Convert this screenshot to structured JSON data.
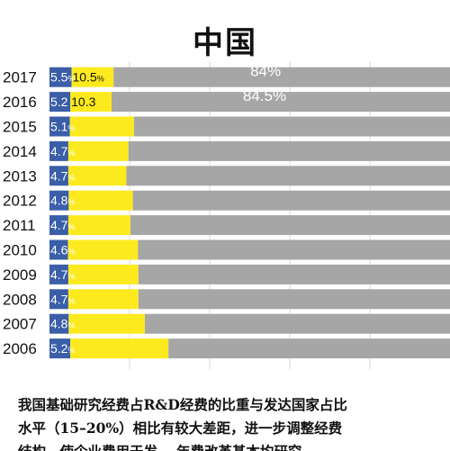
{
  "chart_data": {
    "type": "bar",
    "stacked": true,
    "orientation": "horizontal",
    "title": "中国",
    "categories": [
      "2017",
      "2016",
      "2015",
      "2014",
      "2013",
      "2012",
      "2011",
      "2010",
      "2009",
      "2008",
      "2007",
      "2006"
    ],
    "series": [
      {
        "color": "#3a5ea8",
        "values": [
          5.5,
          5.2,
          5.1,
          4.7,
          4.7,
          4.8,
          4.7,
          4.6,
          4.7,
          4.7,
          4.8,
          5.2
        ],
        "labels": [
          "5.5",
          "5.2",
          "5.1",
          "4.7",
          "4.7",
          "4.8",
          "4.7",
          "4.6",
          "4.7",
          "4.7",
          "4.8",
          "5.2"
        ],
        "label_suffixes": [
          "%",
          "",
          "%",
          "%",
          "%",
          "%",
          "%",
          "%",
          "%",
          "%",
          "%",
          "%"
        ]
      },
      {
        "color": "#fcea1e",
        "values": [
          10.5,
          10.3,
          16,
          15,
          14.5,
          16,
          15.5,
          17.5,
          17.5,
          17.5,
          19,
          24.5
        ],
        "labels": [
          "10.5",
          "10.3",
          "",
          "",
          "",
          "",
          "",
          "",
          "",
          "",
          "",
          ""
        ],
        "label_suffixes": [
          "%",
          "",
          "",
          "",
          "",
          "",
          "",
          "",
          "",
          "",
          "",
          ""
        ]
      },
      {
        "color": "#a6a6a6",
        "values": [
          84,
          84.5,
          78.9,
          80.3,
          80.8,
          79.2,
          79.8,
          77.9,
          77.8,
          77.8,
          76.2,
          70.3
        ],
        "labels": [
          "84%",
          "84.5%",
          "",
          "",
          "",
          "",
          "",
          "",
          "",
          "",
          "",
          ""
        ]
      }
    ],
    "xlim": [
      0,
      100
    ],
    "grid": true
  },
  "caption": {
    "text": "我国基础研究经费占R&D经费的比重与发达国家占比\n水平（15–20%）相比有较大差距，进一步调整经费\n结构，使企业费用于发… 年费改革基本均研究"
  }
}
